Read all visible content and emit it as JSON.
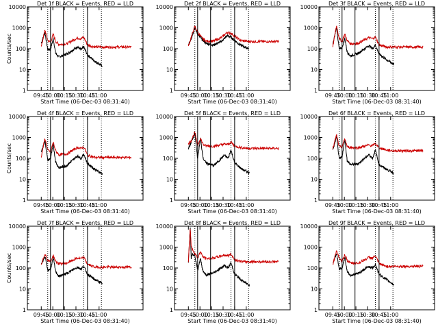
{
  "chart_data": [
    {
      "type": "line",
      "title": "Det 1f BLACK = Events, RED = LLD",
      "ylabel": "Counts/sec",
      "xlabel": "Start Time (06-Dec-03 08:31:40)",
      "x_tick_labels": [
        "09:45",
        "10:00",
        "10:15",
        "10:30",
        "10:45",
        "11:00"
      ],
      "y_tick_labels": [
        "1",
        "10",
        "100",
        "1000",
        "10000"
      ],
      "ylim": [
        1,
        10000
      ],
      "y_scale": "log",
      "x": [
        0,
        0.08,
        0.14,
        0.2,
        0.26,
        0.31,
        0.38,
        0.55,
        0.78,
        0.86,
        0.92,
        1.0,
        1.16,
        1.32
      ],
      "series": [
        {
          "color": "#000000",
          "values": [
            180,
            600,
            90,
            95,
            300,
            60,
            40,
            55,
            120,
            90,
            120,
            50,
            25,
            15
          ],
          "x_end": 1.32
        },
        {
          "color": "#cc0000",
          "values": [
            120,
            800,
            250,
            200,
            500,
            220,
            160,
            170,
            330,
            300,
            350,
            150,
            120,
            120
          ],
          "x_end": 1.95
        }
      ],
      "vlines_solid": [
        0.2,
        0.48,
        1.0
      ],
      "vlines_dotted": [
        0.14,
        0.92,
        1.3
      ]
    },
    {
      "type": "line",
      "title": "Det 2f BLACK = Events, RED = LLD",
      "ylabel": "",
      "xlabel": "Start Time (06-Dec-03 08:31:40)",
      "x_tick_labels": [
        "09:45",
        "10:00",
        "10:15",
        "10:30",
        "10:45",
        "11:00"
      ],
      "y_tick_labels": [
        "1",
        "10",
        "100",
        "1000",
        "10000"
      ],
      "ylim": [
        1,
        10000
      ],
      "y_scale": "log",
      "x": [
        0,
        0.06,
        0.14,
        0.2,
        0.28,
        0.38,
        0.55,
        0.72,
        0.84,
        0.92,
        1.0,
        1.12,
        1.3
      ],
      "series": [
        {
          "color": "#000000",
          "values": [
            150,
            300,
            1000,
            500,
            300,
            180,
            150,
            230,
            420,
            350,
            250,
            150,
            100
          ],
          "x_end": 1.3
        },
        {
          "color": "#cc0000",
          "values": [
            130,
            350,
            1200,
            600,
            350,
            230,
            230,
            350,
            600,
            550,
            400,
            250,
            220
          ],
          "x_end": 1.95
        }
      ],
      "vlines_solid": [
        0.2,
        0.48,
        1.0
      ],
      "vlines_dotted": [
        0.14,
        0.92,
        1.3
      ]
    },
    {
      "type": "line",
      "title": "Det 3f BLACK = Events, RED = LLD",
      "ylabel": "",
      "xlabel": "Start Time (06-Dec-03 08:31:40)",
      "x_tick_labels": [
        "09:45",
        "10:00",
        "10:15",
        "10:30",
        "10:45",
        "11:00"
      ],
      "y_tick_labels": [
        "1",
        "10",
        "100",
        "1000",
        "10000"
      ],
      "ylim": [
        1,
        10000
      ],
      "y_scale": "log",
      "x": [
        0,
        0.08,
        0.14,
        0.2,
        0.26,
        0.31,
        0.38,
        0.55,
        0.78,
        0.86,
        0.92,
        1.0,
        1.16,
        1.32
      ],
      "series": [
        {
          "color": "#000000",
          "values": [
            150,
            1100,
            90,
            110,
            320,
            70,
            45,
            60,
            140,
            100,
            150,
            55,
            30,
            18
          ],
          "x_end": 1.32
        },
        {
          "color": "#cc0000",
          "values": [
            120,
            1300,
            300,
            220,
            500,
            250,
            170,
            180,
            340,
            300,
            360,
            150,
            120,
            120
          ],
          "x_end": 1.95
        }
      ],
      "vlines_solid": [
        0.2,
        0.48,
        1.0
      ],
      "vlines_dotted": [
        0.14,
        0.92,
        1.3
      ]
    },
    {
      "type": "line",
      "title": "Det 4f BLACK = Events, RED = LLD",
      "ylabel": "Counts/sec",
      "xlabel": "Start Time (06-Dec-03 08:31:40)",
      "x_tick_labels": [
        "09:45",
        "10:00",
        "10:15",
        "10:30",
        "10:45",
        "11:00"
      ],
      "y_tick_labels": [
        "1",
        "10",
        "100",
        "1000",
        "10000"
      ],
      "ylim": [
        1,
        10000
      ],
      "y_scale": "log",
      "x": [
        0,
        0.08,
        0.14,
        0.2,
        0.26,
        0.31,
        0.38,
        0.55,
        0.78,
        0.86,
        0.92,
        1.0,
        1.16,
        1.32
      ],
      "series": [
        {
          "color": "#000000",
          "values": [
            200,
            700,
            80,
            100,
            450,
            70,
            35,
            45,
            130,
            100,
            160,
            55,
            30,
            18
          ],
          "x_end": 1.32
        },
        {
          "color": "#cc0000",
          "values": [
            120,
            900,
            250,
            200,
            600,
            230,
            150,
            160,
            330,
            300,
            350,
            140,
            110,
            110
          ],
          "x_end": 1.95
        }
      ],
      "vlines_solid": [
        0.2,
        0.48,
        1.0
      ],
      "vlines_dotted": [
        0.14,
        0.92,
        1.3
      ]
    },
    {
      "type": "line",
      "title": "Det 5f BLACK = Events, RED = LLD",
      "ylabel": "",
      "xlabel": "Start Time (06-Dec-03 08:31:40)",
      "x_tick_labels": [
        "09:45",
        "10:00",
        "10:15",
        "10:30",
        "10:45",
        "11:00"
      ],
      "y_tick_labels": [
        "1",
        "10",
        "100",
        "1000",
        "10000"
      ],
      "ylim": [
        1,
        10000
      ],
      "y_scale": "log",
      "x": [
        0,
        0.06,
        0.14,
        0.2,
        0.26,
        0.32,
        0.38,
        0.55,
        0.78,
        0.86,
        0.92,
        1.0,
        1.16,
        1.32
      ],
      "series": [
        {
          "color": "#000000",
          "values": [
            300,
            600,
            1500,
            100,
            900,
            100,
            60,
            45,
            140,
            100,
            250,
            60,
            30,
            20
          ],
          "x_end": 1.32
        },
        {
          "color": "#cc0000",
          "values": [
            500,
            700,
            1800,
            400,
            950,
            450,
            400,
            380,
            480,
            460,
            600,
            380,
            320,
            300
          ],
          "x_end": 1.95
        }
      ],
      "vlines_solid": [
        0.2,
        0.48,
        1.0
      ],
      "vlines_dotted": [
        0.14,
        0.92,
        1.3
      ]
    },
    {
      "type": "line",
      "title": "Det 6f BLACK = Events, RED = LLD",
      "ylabel": "",
      "xlabel": "Start Time (06-Dec-03 08:31:40)",
      "x_tick_labels": [
        "09:45",
        "10:00",
        "10:15",
        "10:30",
        "10:45",
        "11:00"
      ],
      "y_tick_labels": [
        "1",
        "10",
        "100",
        "1000",
        "10000"
      ],
      "ylim": [
        1,
        10000
      ],
      "y_scale": "log",
      "x": [
        0,
        0.08,
        0.14,
        0.2,
        0.26,
        0.31,
        0.38,
        0.55,
        0.78,
        0.86,
        0.92,
        1.0,
        1.16,
        1.32
      ],
      "series": [
        {
          "color": "#000000",
          "values": [
            250,
            1100,
            90,
            120,
            800,
            80,
            50,
            55,
            150,
            100,
            250,
            50,
            30,
            20
          ],
          "x_end": 1.32
        },
        {
          "color": "#cc0000",
          "values": [
            280,
            1300,
            350,
            350,
            900,
            360,
            330,
            320,
            430,
            400,
            520,
            320,
            250,
            230
          ],
          "x_end": 1.95
        }
      ],
      "vlines_solid": [
        0.2,
        0.48,
        1.0
      ],
      "vlines_dotted": [
        0.14,
        0.92,
        1.3
      ]
    },
    {
      "type": "line",
      "title": "Det 7f BLACK = Events, RED = LLD",
      "ylabel": "Counts/sec",
      "xlabel": "Start Time (06-Dec-03 08:31:40)",
      "x_tick_labels": [
        "09:45",
        "10:00",
        "10:15",
        "10:30",
        "10:45",
        "11:00"
      ],
      "y_tick_labels": [
        "1",
        "10",
        "100",
        "1000",
        "10000"
      ],
      "ylim": [
        1,
        10000
      ],
      "y_scale": "log",
      "x": [
        0,
        0.08,
        0.14,
        0.2,
        0.26,
        0.31,
        0.38,
        0.55,
        0.78,
        0.86,
        0.92,
        1.0,
        1.16,
        1.32
      ],
      "series": [
        {
          "color": "#000000",
          "values": [
            160,
            350,
            80,
            90,
            300,
            70,
            40,
            55,
            110,
            90,
            120,
            50,
            28,
            18
          ],
          "x_end": 1.32
        },
        {
          "color": "#cc0000",
          "values": [
            130,
            500,
            230,
            200,
            400,
            210,
            160,
            170,
            300,
            280,
            320,
            150,
            110,
            110
          ],
          "x_end": 1.95
        }
      ],
      "vlines_solid": [
        0.2,
        0.48,
        1.0
      ],
      "vlines_dotted": [
        0.14,
        0.92,
        1.3
      ]
    },
    {
      "type": "line",
      "title": "Det 8f BLACK = Events, RED = LLD",
      "ylabel": "",
      "xlabel": "Start Time (06-Dec-03 08:31:40)",
      "x_tick_labels": [
        "09:45",
        "10:00",
        "10:15",
        "10:30",
        "10:45",
        "11:00"
      ],
      "y_tick_labels": [
        "1",
        "10",
        "100",
        "1000",
        "10000"
      ],
      "ylim": [
        1,
        10000
      ],
      "y_scale": "log",
      "x": [
        0,
        0.04,
        0.06,
        0.08,
        0.14,
        0.2,
        0.26,
        0.31,
        0.38,
        0.55,
        0.78,
        0.86,
        0.92,
        1.0,
        1.16,
        1.32
      ],
      "series": [
        {
          "color": "#000000",
          "values": [
            200,
            10000,
            300,
            500,
            400,
            80,
            280,
            80,
            45,
            60,
            130,
            100,
            180,
            50,
            25,
            15
          ],
          "x_end": 1.32
        },
        {
          "color": "#cc0000",
          "values": [
            200,
            10000,
            1200,
            800,
            500,
            300,
            600,
            350,
            280,
            300,
            420,
            380,
            480,
            250,
            200,
            200
          ],
          "x_end": 1.95
        }
      ],
      "vlines_solid": [
        0.2,
        0.48,
        1.0
      ],
      "vlines_dotted": [
        0.14,
        0.92,
        1.3
      ]
    },
    {
      "type": "line",
      "title": "Det 9f BLACK = Events, RED = LLD",
      "ylabel": "",
      "xlabel": "Start Time (06-Dec-03 08:31:40)",
      "x_tick_labels": [
        "09:45",
        "10:00",
        "10:15",
        "10:30",
        "10:45",
        "11:00"
      ],
      "y_tick_labels": [
        "1",
        "10",
        "100",
        "1000",
        "10000"
      ],
      "ylim": [
        1,
        10000
      ],
      "y_scale": "log",
      "x": [
        0,
        0.08,
        0.14,
        0.2,
        0.26,
        0.31,
        0.38,
        0.55,
        0.78,
        0.86,
        0.92,
        1.0,
        1.16,
        1.32
      ],
      "series": [
        {
          "color": "#000000",
          "values": [
            170,
            500,
            90,
            100,
            320,
            70,
            45,
            55,
            120,
            100,
            150,
            50,
            28,
            16
          ],
          "x_end": 1.32
        },
        {
          "color": "#cc0000",
          "values": [
            140,
            700,
            280,
            200,
            450,
            230,
            170,
            170,
            320,
            300,
            380,
            160,
            120,
            120
          ],
          "x_end": 1.95
        }
      ],
      "vlines_solid": [
        0.2,
        0.48,
        1.0
      ],
      "vlines_dotted": [
        0.14,
        0.92,
        1.3
      ]
    }
  ]
}
